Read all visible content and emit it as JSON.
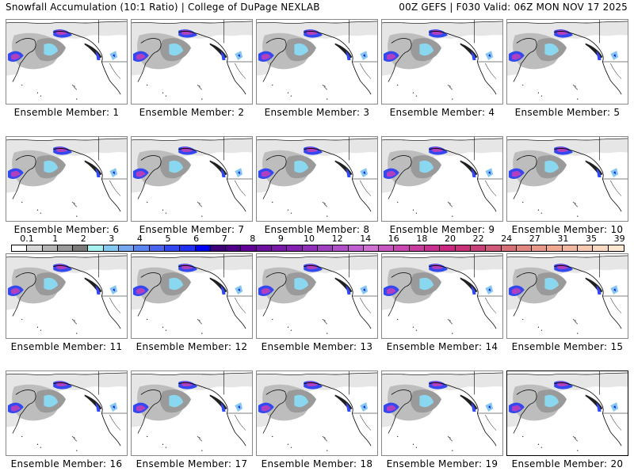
{
  "header": {
    "title": "Snowfall Accumulation (10:1 Ratio) | College of DuPage NEXLAB",
    "run_info": "00Z GEFS | F030 Valid: 06Z MON NOV 17 2025"
  },
  "panels": [
    {
      "label": "Ensemble Member: 1"
    },
    {
      "label": "Ensemble Member: 2"
    },
    {
      "label": "Ensemble Member: 3"
    },
    {
      "label": "Ensemble Member: 4"
    },
    {
      "label": "Ensemble Member: 5"
    },
    {
      "label": "Ensemble Member: 6"
    },
    {
      "label": "Ensemble Member: 7"
    },
    {
      "label": "Ensemble Member: 8"
    },
    {
      "label": "Ensemble Member: 9"
    },
    {
      "label": "Ensemble Member: 10"
    },
    {
      "label": "Ensemble Member: 11"
    },
    {
      "label": "Ensemble Member: 12"
    },
    {
      "label": "Ensemble Member: 13"
    },
    {
      "label": "Ensemble Member: 14"
    },
    {
      "label": "Ensemble Member: 15"
    },
    {
      "label": "Ensemble Member: 16"
    },
    {
      "label": "Ensemble Member: 17"
    },
    {
      "label": "Ensemble Member: 18"
    },
    {
      "label": "Ensemble Member: 19"
    },
    {
      "label": "Ensemble Member: 20"
    }
  ],
  "selected_panel": 20,
  "colorbar": {
    "tick_labels": [
      "0.1",
      "1",
      "2",
      "3",
      "4",
      "5",
      "6",
      "7",
      "8",
      "9",
      "10",
      "12",
      "14",
      "16",
      "18",
      "20",
      "22",
      "24",
      "27",
      "31",
      "35",
      "39"
    ],
    "colors": [
      "#ffffff",
      "#d6d6d6",
      "#b5b5b5",
      "#9a9a9a",
      "#7a7a7a",
      "#a6f0f0",
      "#84c8f0",
      "#78a8f0",
      "#5a84f0",
      "#4a64f0",
      "#3448f0",
      "#2030f0",
      "#0000f0",
      "#3c0078",
      "#500088",
      "#600098",
      "#6c10a0",
      "#7818a8",
      "#8420b0",
      "#9030b8",
      "#a040c0",
      "#b050c8",
      "#c060d0",
      "#d070d0",
      "#c858c0",
      "#c848b0",
      "#c83ca0",
      "#c83090",
      "#c82880",
      "#c83078",
      "#c84078",
      "#d05878",
      "#d87078",
      "#e08880",
      "#e89888",
      "#f0a890",
      "#f0b8a0",
      "#f8c8b0",
      "#f8d8c0",
      "#fce8d0"
    ]
  },
  "colors": {
    "panel_border": "#888888",
    "selected_border": "#000000"
  }
}
